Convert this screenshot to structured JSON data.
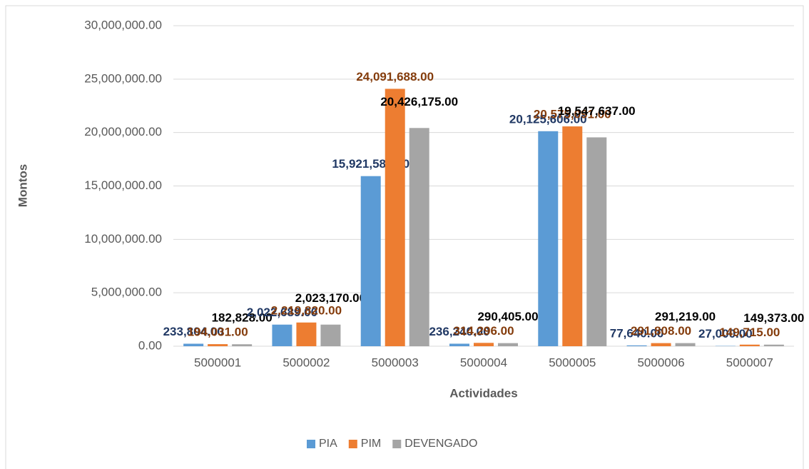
{
  "chart_data": {
    "type": "bar",
    "x_label": "Actividades",
    "y_label": "Montos",
    "categories": [
      "5000001",
      "5000002",
      "5000003",
      "5000004",
      "5000005",
      "5000006",
      "5000007"
    ],
    "series": [
      {
        "name": "PIA",
        "color": "#5b9bd5",
        "label_color": "#203864",
        "values": [
          233804,
          2022689,
          15921582,
          236240,
          20125606,
          77640,
          27000
        ],
        "value_labels": [
          "233,804.00",
          "2,022,689.00",
          "15,921,582.00",
          "236,240.00",
          "20,125,606.00",
          "77,640.00",
          "27,000.00"
        ]
      },
      {
        "name": "PIM",
        "color": "#ed7d31",
        "label_color": "#843c0c",
        "values": [
          194031,
          2219820,
          24091688,
          314296,
          20575091,
          291808,
          149715
        ],
        "value_labels": [
          "194,031.00",
          "2,219,820.00",
          "24,091,688.00",
          "314,296.00",
          "20,575,091.00",
          "291,808.00",
          "149,715.00"
        ]
      },
      {
        "name": "DEVENGADO",
        "color": "#a5a5a5",
        "label_color": "#000000",
        "values": [
          182828,
          2023170,
          20426175,
          290405,
          19547637,
          291219,
          149373
        ],
        "value_labels": [
          "182,828.00",
          "2,023,170.00",
          "20,426,175.00",
          "290,405.00",
          "19,547,637.00",
          "291,219.00",
          "149,373.00"
        ]
      }
    ],
    "ylim": [
      0,
      30000000
    ],
    "yticks": [
      {
        "value": 0,
        "label": "0.00"
      },
      {
        "value": 5000000,
        "label": "5,000,000.00"
      },
      {
        "value": 10000000,
        "label": "10,000,000.00"
      },
      {
        "value": 15000000,
        "label": "15,000,000.00"
      },
      {
        "value": 20000000,
        "label": "20,000,000.00"
      },
      {
        "value": 25000000,
        "label": "25,000,000.00"
      },
      {
        "value": 30000000,
        "label": "30,000,000.00"
      }
    ],
    "grid": true,
    "legend": "bottom"
  }
}
